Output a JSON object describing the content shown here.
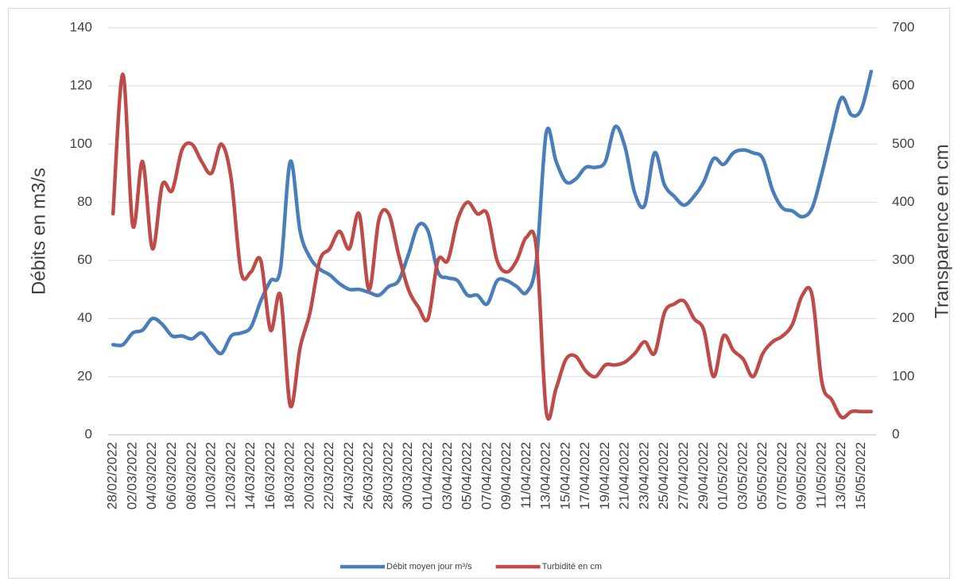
{
  "chart_data": {
    "type": "line",
    "categories": [
      "28/02/2022",
      null,
      "02/03/2022",
      null,
      "04/03/2022",
      null,
      "06/03/2022",
      null,
      "08/03/2022",
      null,
      "10/03/2022",
      null,
      "12/03/2022",
      null,
      "14/03/2022",
      null,
      "16/03/2022",
      null,
      "18/03/2022",
      null,
      "20/03/2022",
      null,
      "22/03/2022",
      null,
      "24/03/2022",
      null,
      "26/03/2022",
      null,
      "28/03/2022",
      null,
      "30/03/2022",
      null,
      "01/04/2022",
      null,
      "03/04/2022",
      null,
      "05/04/2022",
      null,
      "07/04/2022",
      null,
      "09/04/2022",
      null,
      "11/04/2022",
      null,
      "13/04/2022",
      null,
      "15/04/2022",
      null,
      "17/04/2022",
      null,
      "19/04/2022",
      null,
      "21/04/2022",
      null,
      "23/04/2022",
      null,
      "25/04/2022",
      null,
      "27/04/2022",
      null,
      "29/04/2022",
      null,
      "01/05/2022",
      null,
      "03/05/2022",
      null,
      "05/05/2022",
      null,
      "07/05/2022",
      null,
      "09/05/2022",
      null,
      "11/05/2022",
      null,
      "13/05/2022",
      null,
      "15/05/2022",
      null
    ],
    "series": [
      {
        "name": "Débit moyen jour  m³/s",
        "color": "#4a7ebb",
        "values": [
          31,
          31,
          35,
          36,
          40,
          38,
          34,
          34,
          33,
          35,
          31,
          28,
          34,
          35,
          37,
          46,
          53,
          57,
          94,
          70,
          61,
          57,
          55,
          52,
          50,
          50,
          49,
          48,
          51,
          53,
          62,
          72,
          70,
          56,
          54,
          53,
          48,
          48,
          45,
          53,
          53,
          51,
          49,
          60,
          104,
          94,
          87,
          88,
          92,
          92,
          94,
          106,
          99,
          83,
          79,
          97,
          86,
          82,
          79,
          82,
          87,
          95,
          93,
          97,
          98,
          97,
          95,
          84,
          78,
          77,
          75,
          78,
          90,
          104,
          116,
          110,
          112,
          125
        ]
      },
      {
        "name": "Turbidité en cm",
        "color": "#be4b48",
        "axis": "y2",
        "values": [
          380,
          620,
          360,
          470,
          320,
          430,
          420,
          490,
          500,
          470,
          450,
          500,
          440,
          280,
          280,
          300,
          180,
          240,
          50,
          150,
          210,
          300,
          320,
          350,
          320,
          380,
          250,
          370,
          380,
          310,
          250,
          220,
          200,
          300,
          300,
          370,
          400,
          380,
          380,
          300,
          280,
          300,
          340,
          320,
          40,
          80,
          130,
          135,
          110,
          100,
          120,
          120,
          125,
          140,
          160,
          140,
          210,
          225,
          230,
          200,
          180,
          100,
          170,
          145,
          130,
          100,
          140,
          160,
          170,
          190,
          240,
          240,
          90,
          60,
          30,
          40,
          40,
          40
        ]
      }
    ],
    "y_label": "Débits en m3/s",
    "y2_label": "Transparence en cm",
    "ylim": [
      0,
      140
    ],
    "yticks": [
      0,
      20,
      40,
      60,
      80,
      100,
      120,
      140
    ],
    "y2lim": [
      0,
      700
    ],
    "y2ticks": [
      0,
      100,
      200,
      300,
      400,
      500,
      600,
      700
    ],
    "grid": true,
    "legend": "bottom"
  }
}
